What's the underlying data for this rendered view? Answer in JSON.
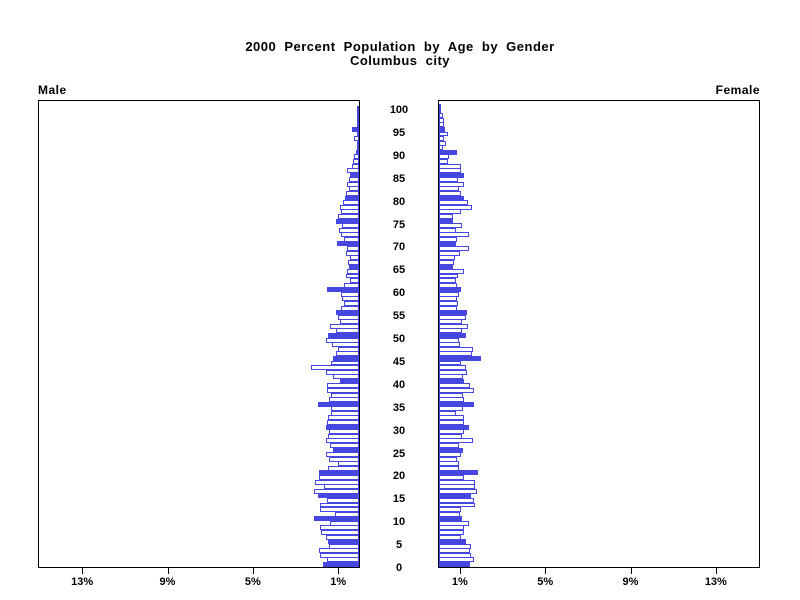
{
  "title": {
    "line1": "2000 Percent Population by Age by Gender",
    "line2": "Columbus city"
  },
  "panels": {
    "left_header": "Male",
    "right_header": "Female"
  },
  "colors": {
    "bar_blue": "#4646e0",
    "frame_black": "#000000",
    "background": "#ffffff"
  },
  "chart_data": {
    "type": "bar",
    "variant": "population-pyramid",
    "title": "2000 Percent Population by Age by Gender",
    "subtitle": "Columbus city",
    "orientation": "horizontal, male bars grow left, female bars grow right",
    "grid": false,
    "legend": "none",
    "age_min": 0,
    "age_max": 100,
    "age_tick_values": [
      0,
      5,
      10,
      15,
      20,
      25,
      30,
      35,
      40,
      45,
      50,
      55,
      60,
      65,
      70,
      75,
      80,
      85,
      90,
      95,
      100
    ],
    "x_axis": {
      "unit": "%",
      "xlim": [
        0,
        15.0
      ],
      "tick_values": [
        1,
        5,
        9,
        13
      ],
      "male_tick_labels": [
        "1%",
        "5%",
        "9%",
        "13%"
      ],
      "female_tick_labels": [
        "1%",
        "5%",
        "9%",
        "13%"
      ]
    },
    "style_rule": "bars at ages divisible by 5 are solid blue; all other ages are white with blue outline",
    "series": [
      {
        "name": "Male",
        "values": [
          1.68,
          1.49,
          1.85,
          1.88,
          1.41,
          1.46,
          1.57,
          1.76,
          1.85,
          1.38,
          2.12,
          1.13,
          1.85,
          1.85,
          1.49,
          1.91,
          2.09,
          1.65,
          2.07,
          1.88,
          1.88,
          1.44,
          0.97,
          1.41,
          1.57,
          1.21,
          1.35,
          1.55,
          1.45,
          1.4,
          1.55,
          1.49,
          1.46,
          1.33,
          1.33,
          1.91,
          1.4,
          1.3,
          1.5,
          1.5,
          0.91,
          1.2,
          1.57,
          2.27,
          1.33,
          1.22,
          1.1,
          0.99,
          1.25,
          1.57,
          1.44,
          1.1,
          1.35,
          0.9,
          1.0,
          1.1,
          0.85,
          0.7,
          0.78,
          0.85,
          1.49,
          0.7,
          0.44,
          0.63,
          0.55,
          0.45,
          0.5,
          0.44,
          0.63,
          0.55,
          1.02,
          0.7,
          0.85,
          0.94,
          0.78,
          1.07,
          0.97,
          0.86,
          0.9,
          0.75,
          0.65,
          0.6,
          0.45,
          0.55,
          0.45,
          0.4,
          0.55,
          0.35,
          0.3,
          0.25,
          0.13,
          0.08,
          0.08,
          0.24,
          0.05,
          0.35,
          0.05,
          0.02,
          0.02,
          0.0,
          0.0
        ]
      },
      {
        "name": "Female",
        "values": [
          1.43,
          1.66,
          1.51,
          1.43,
          1.51,
          1.27,
          1.04,
          1.19,
          1.19,
          1.4,
          1.08,
          0.99,
          1.04,
          1.71,
          1.66,
          1.51,
          1.77,
          1.71,
          1.71,
          1.19,
          1.82,
          0.96,
          0.96,
          0.83,
          1.04,
          1.11,
          0.96,
          1.58,
          1.08,
          1.15,
          1.4,
          1.15,
          1.15,
          0.8,
          1.11,
          1.66,
          1.19,
          1.11,
          1.62,
          1.43,
          1.19,
          1.11,
          1.3,
          1.27,
          1.04,
          1.95,
          1.55,
          1.58,
          0.99,
          0.96,
          1.27,
          1.1,
          1.35,
          1.1,
          1.25,
          1.3,
          0.85,
          0.9,
          0.85,
          0.95,
          1.04,
          0.85,
          0.8,
          0.9,
          1.15,
          0.65,
          0.7,
          0.75,
          1.0,
          1.4,
          0.8,
          0.85,
          1.4,
          0.8,
          1.08,
          0.67,
          0.67,
          1.04,
          1.55,
          1.35,
          1.15,
          1.04,
          0.96,
          1.15,
          0.88,
          1.19,
          1.04,
          1.04,
          0.41,
          0.49,
          0.83,
          0.2,
          0.33,
          0.25,
          0.44,
          0.3,
          0.25,
          0.25,
          0.17,
          0.08,
          0.05
        ]
      }
    ]
  }
}
